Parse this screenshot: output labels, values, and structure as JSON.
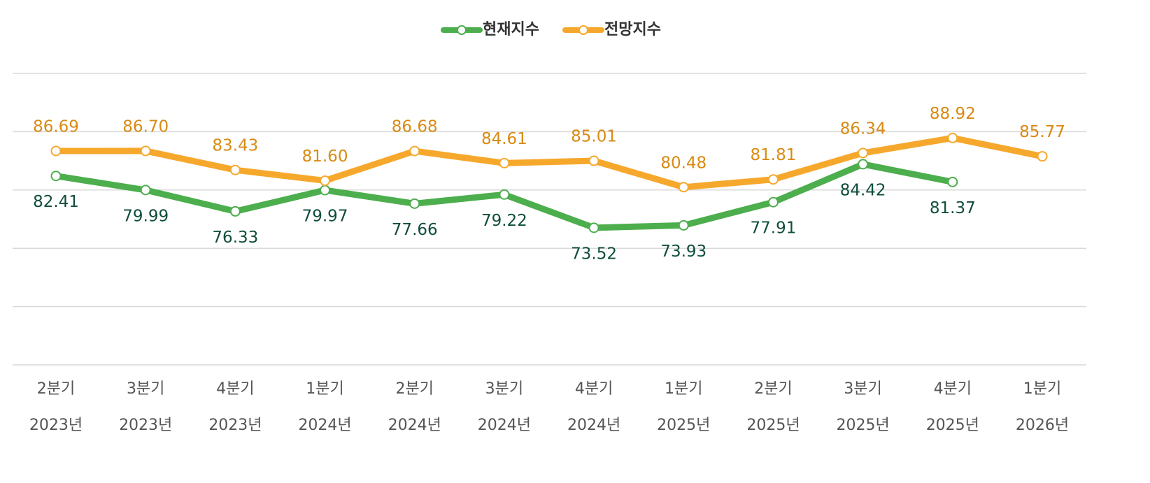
{
  "chart_data": {
    "type": "line",
    "categories": [
      [
        "2분기",
        "2023년"
      ],
      [
        "3분기",
        "2023년"
      ],
      [
        "4분기",
        "2023년"
      ],
      [
        "1분기",
        "2024년"
      ],
      [
        "2분기",
        "2024년"
      ],
      [
        "3분기",
        "2024년"
      ],
      [
        "4분기",
        "2024년"
      ],
      [
        "1분기",
        "2025년"
      ],
      [
        "2분기",
        "2025년"
      ],
      [
        "3분기",
        "2025년"
      ],
      [
        "4분기",
        "2025년"
      ],
      [
        "1분기",
        "2026년"
      ]
    ],
    "series": [
      {
        "name": "현재지수",
        "color": "#4cae4c",
        "label_color": "#0f4d3c",
        "label_position": "below",
        "values": [
          82.41,
          79.99,
          76.33,
          79.97,
          77.66,
          79.22,
          73.52,
          73.93,
          77.91,
          84.42,
          81.37,
          null
        ],
        "value_labels": [
          "82.41",
          "79.99",
          "76.33",
          "79.97",
          "77.66",
          "79.22",
          "73.52",
          "73.93",
          "77.91",
          "84.42",
          "81.37",
          null
        ]
      },
      {
        "name": "전망지수",
        "color": "#f6a82c",
        "label_color": "#d98a12",
        "label_position": "above",
        "values": [
          86.69,
          86.7,
          83.43,
          81.6,
          86.68,
          84.61,
          85.01,
          80.48,
          81.81,
          86.34,
          88.92,
          85.77
        ],
        "value_labels": [
          "86.69",
          "86.70",
          "83.43",
          "81.60",
          "86.68",
          "84.61",
          "85.01",
          "80.48",
          "81.81",
          "86.34",
          "88.92",
          "85.77"
        ]
      }
    ],
    "ylim": [
      50,
      100
    ],
    "yticks": [
      50,
      60,
      70,
      80,
      90,
      100
    ],
    "grid": true,
    "legend": "top"
  }
}
